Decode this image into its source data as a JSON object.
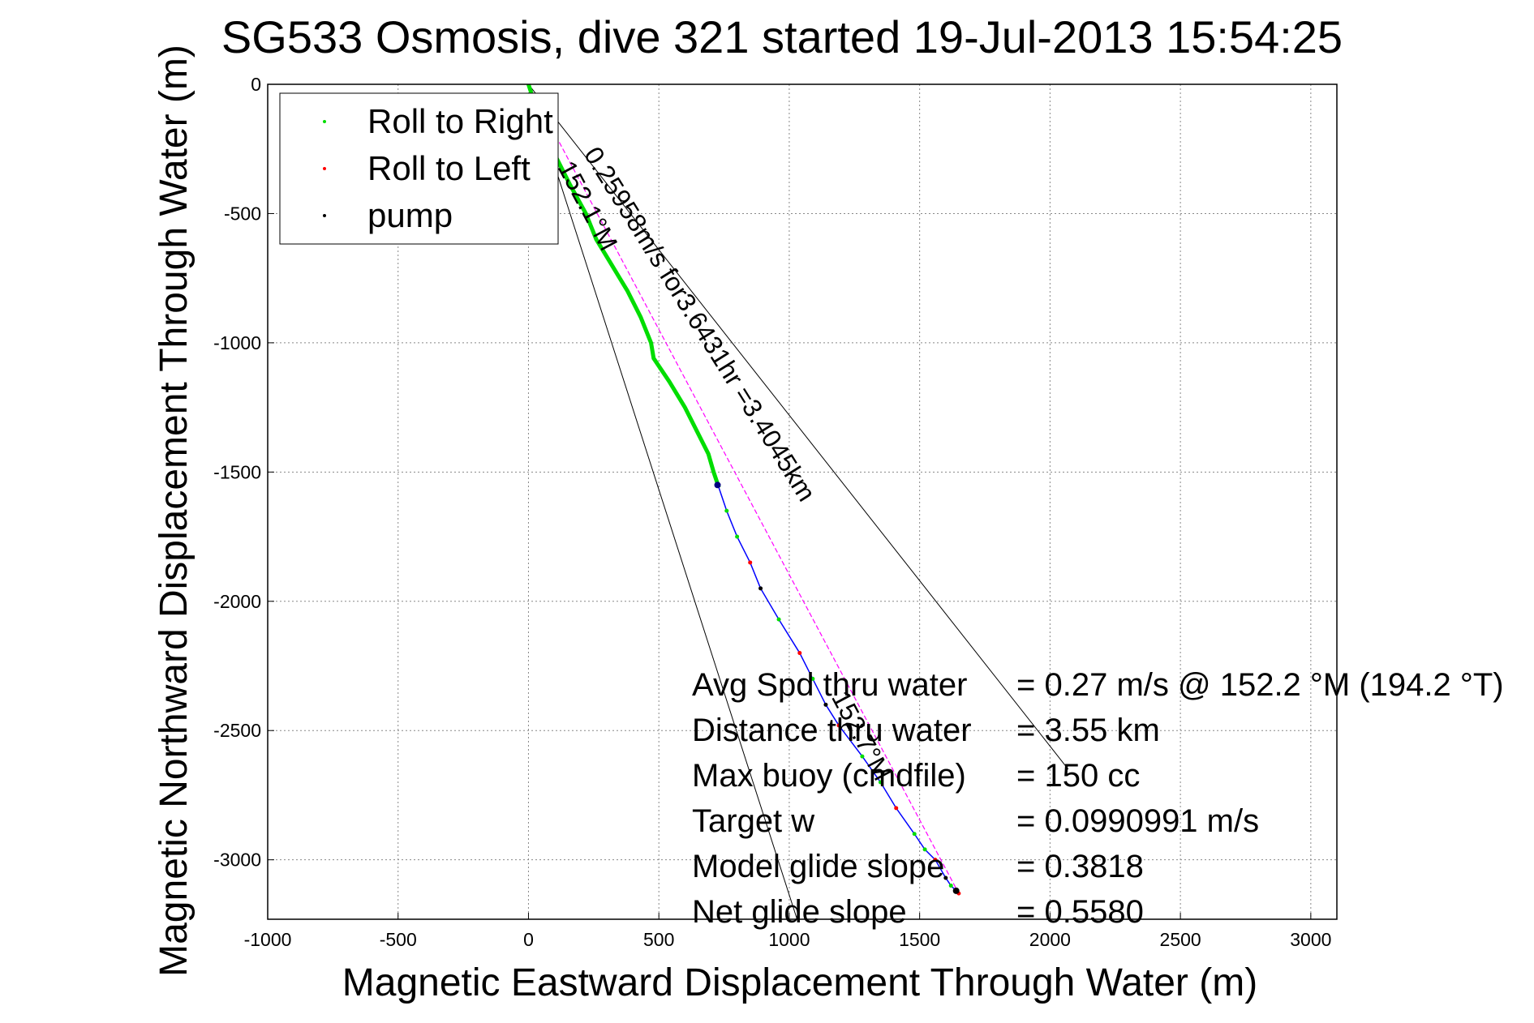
{
  "chart_data": {
    "type": "line",
    "title": "SG533 Osmosis, dive 321 started 19-Jul-2013 15:54:25",
    "xlabel": "Magnetic Eastward Displacement Through Water (m)",
    "ylabel": "Magnetic Northward Displacement Through Water (m)",
    "xlim": [
      -1000,
      3100
    ],
    "ylim": [
      -3230,
      0
    ],
    "x_ticks": [
      -1000,
      -500,
      0,
      500,
      1000,
      1500,
      2000,
      2500,
      3000
    ],
    "y_ticks": [
      0,
      -500,
      -1000,
      -1500,
      -2000,
      -2500,
      -3000
    ],
    "grid": true,
    "legend_position": "top-left",
    "legend": [
      {
        "name": "Roll to Right",
        "color": "#00dd00"
      },
      {
        "name": "Roll to Left",
        "color": "#ff0000"
      },
      {
        "name": "pump",
        "color": "#000000"
      }
    ],
    "track": {
      "color": "#0000ff",
      "points": [
        [
          0,
          0
        ],
        [
          60,
          -190
        ],
        [
          110,
          -290
        ],
        [
          160,
          -390
        ],
        [
          220,
          -500
        ],
        [
          260,
          -600
        ],
        [
          320,
          -700
        ],
        [
          380,
          -800
        ],
        [
          430,
          -900
        ],
        [
          470,
          -1000
        ],
        [
          480,
          -1060
        ],
        [
          540,
          -1150
        ],
        [
          600,
          -1250
        ],
        [
          650,
          -1350
        ],
        [
          690,
          -1430
        ],
        [
          710,
          -1500
        ],
        [
          730,
          -1560
        ],
        [
          760,
          -1650
        ],
        [
          800,
          -1750
        ],
        [
          850,
          -1850
        ],
        [
          890,
          -1950
        ],
        [
          960,
          -2070
        ],
        [
          1040,
          -2200
        ],
        [
          1090,
          -2300
        ],
        [
          1140,
          -2400
        ],
        [
          1190,
          -2480
        ],
        [
          1280,
          -2600
        ],
        [
          1350,
          -2700
        ],
        [
          1410,
          -2800
        ],
        [
          1480,
          -2900
        ],
        [
          1520,
          -2960
        ],
        [
          1560,
          -3000
        ],
        [
          1600,
          -3070
        ],
        [
          1620,
          -3100
        ],
        [
          1650,
          -3130
        ]
      ]
    },
    "roll_right_segment": [
      [
        0,
        0
      ],
      [
        60,
        -190
      ],
      [
        110,
        -290
      ],
      [
        160,
        -390
      ],
      [
        220,
        -500
      ],
      [
        260,
        -600
      ],
      [
        320,
        -700
      ],
      [
        380,
        -800
      ],
      [
        430,
        -900
      ],
      [
        470,
        -1000
      ],
      [
        480,
        -1060
      ],
      [
        540,
        -1150
      ],
      [
        600,
        -1250
      ],
      [
        650,
        -1350
      ],
      [
        690,
        -1430
      ],
      [
        710,
        -1500
      ],
      [
        730,
        -1560
      ]
    ],
    "straight_line": {
      "color": "#ff00ff",
      "from": [
        0,
        0
      ],
      "to": [
        1650,
        -3130
      ]
    },
    "wedge_lines": [
      {
        "from": [
          0,
          0
        ],
        "to": [
          2070,
          -2650
        ],
        "color": "#000000"
      },
      {
        "from": [
          0,
          0
        ],
        "to": [
          1030,
          -3230
        ],
        "color": "#000000"
      }
    ],
    "annotations": [
      {
        "text": "0.25958m/s for3.6431hr =3.4045km",
        "x": 210,
        "y": -270,
        "angle": 58
      },
      {
        "text": "152.1°M",
        "x": 110,
        "y": -320,
        "angle": 62
      },
      {
        "text": "152.7°M",
        "x": 1160,
        "y": -2370,
        "angle": 62
      }
    ],
    "stats": [
      {
        "label": "Avg Spd thru water",
        "value": "=  0.27 m/s @ 152.2 °M (194.2 °T)"
      },
      {
        "label": "Distance thru water",
        "value": "=  3.55 km"
      },
      {
        "label": "Max buoy (cmdfile)",
        "value": "= 150 cc"
      },
      {
        "label": "Target w",
        "value": "= 0.0990991 m/s"
      },
      {
        "label": "Model glide slope",
        "value": "= 0.3818"
      },
      {
        "label": "Net glide slope",
        "value": "= 0.5580"
      }
    ]
  }
}
